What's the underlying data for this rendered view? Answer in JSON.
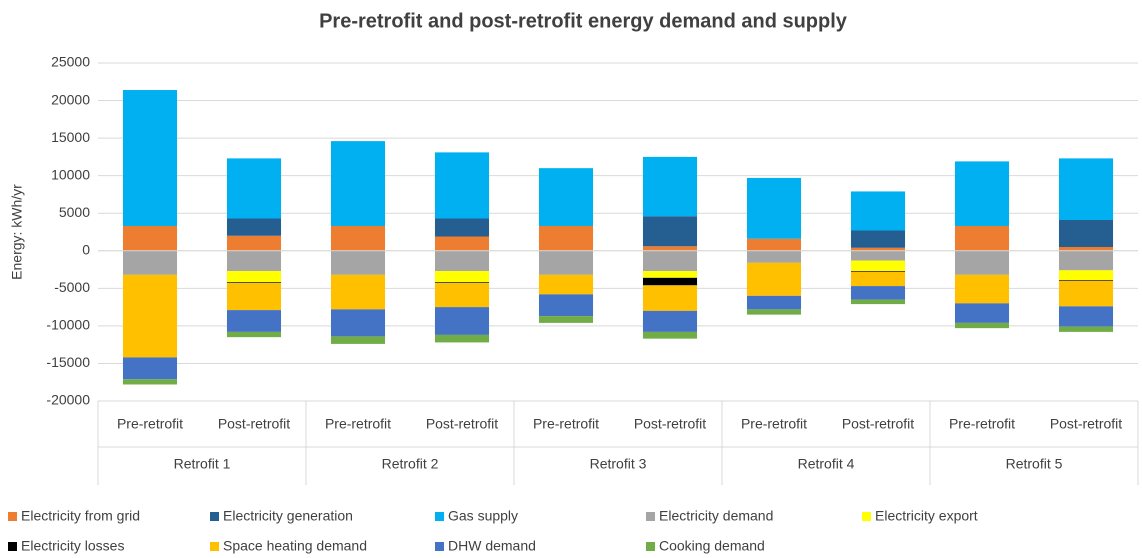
{
  "chart_data": {
    "type": "stacked-bar",
    "title": "Pre-retrofit and post-retrofit energy demand and supply",
    "y_label": "Energy: kWh/yr",
    "categories": [
      "Pre-retrofit",
      "Post-retrofit",
      "Pre-retrofit",
      "Post-retrofit",
      "Pre-retrofit",
      "Post-retrofit",
      "Pre-retrofit",
      "Post-retrofit",
      "Pre-retrofit",
      "Post-retrofit"
    ],
    "groups": [
      "Retrofit 1",
      "Retrofit 2",
      "Retrofit 3",
      "Retrofit 4",
      "Retrofit 5"
    ],
    "series": [
      {
        "name": "Electricity from grid",
        "color": "#ed7d31",
        "values": [
          3300,
          2000,
          3300,
          1900,
          3300,
          600,
          1600,
          400,
          3300,
          500
        ]
      },
      {
        "name": "Electricity generation",
        "color": "#255e91",
        "values": [
          0,
          2300,
          0,
          2400,
          0,
          4000,
          0,
          2300,
          0,
          3600
        ]
      },
      {
        "name": "Gas supply",
        "color": "#00b0f0",
        "values": [
          18100,
          8000,
          11300,
          8800,
          7700,
          7900,
          8100,
          5200,
          8600,
          8200
        ]
      },
      {
        "name": "Electricity demand",
        "color": "#a5a5a5",
        "values": [
          -3200,
          -2700,
          -3200,
          -2700,
          -3200,
          -2700,
          -1600,
          -1300,
          -3200,
          -2600
        ]
      },
      {
        "name": "Electricity export",
        "color": "#ffff00",
        "values": [
          0,
          -1500,
          0,
          -1500,
          0,
          -900,
          0,
          -1400,
          0,
          -1300
        ]
      },
      {
        "name": "Electricity losses",
        "color": "#000000",
        "values": [
          0,
          -100,
          0,
          -100,
          0,
          -1000,
          0,
          -100,
          0,
          -100
        ]
      },
      {
        "name": "Space heating demand",
        "color": "#ffc000",
        "values": [
          -11000,
          -3600,
          -4600,
          -3200,
          -2600,
          -3400,
          -4400,
          -1900,
          -3800,
          -3400
        ]
      },
      {
        "name": "DHW demand",
        "color": "#4472c4",
        "values": [
          -2900,
          -2900,
          -3600,
          -3700,
          -2900,
          -2800,
          -1800,
          -1800,
          -2600,
          -2700
        ]
      },
      {
        "name": "Cooking demand",
        "color": "#70ad47",
        "values": [
          -700,
          -700,
          -1000,
          -1000,
          -900,
          -900,
          -700,
          -600,
          -700,
          -700
        ]
      }
    ],
    "ylim": [
      -20000,
      25000
    ],
    "yticks": [
      -20000,
      -15000,
      -10000,
      -5000,
      0,
      5000,
      10000,
      15000,
      20000,
      25000
    ],
    "grid": true,
    "legend": "bottom"
  }
}
